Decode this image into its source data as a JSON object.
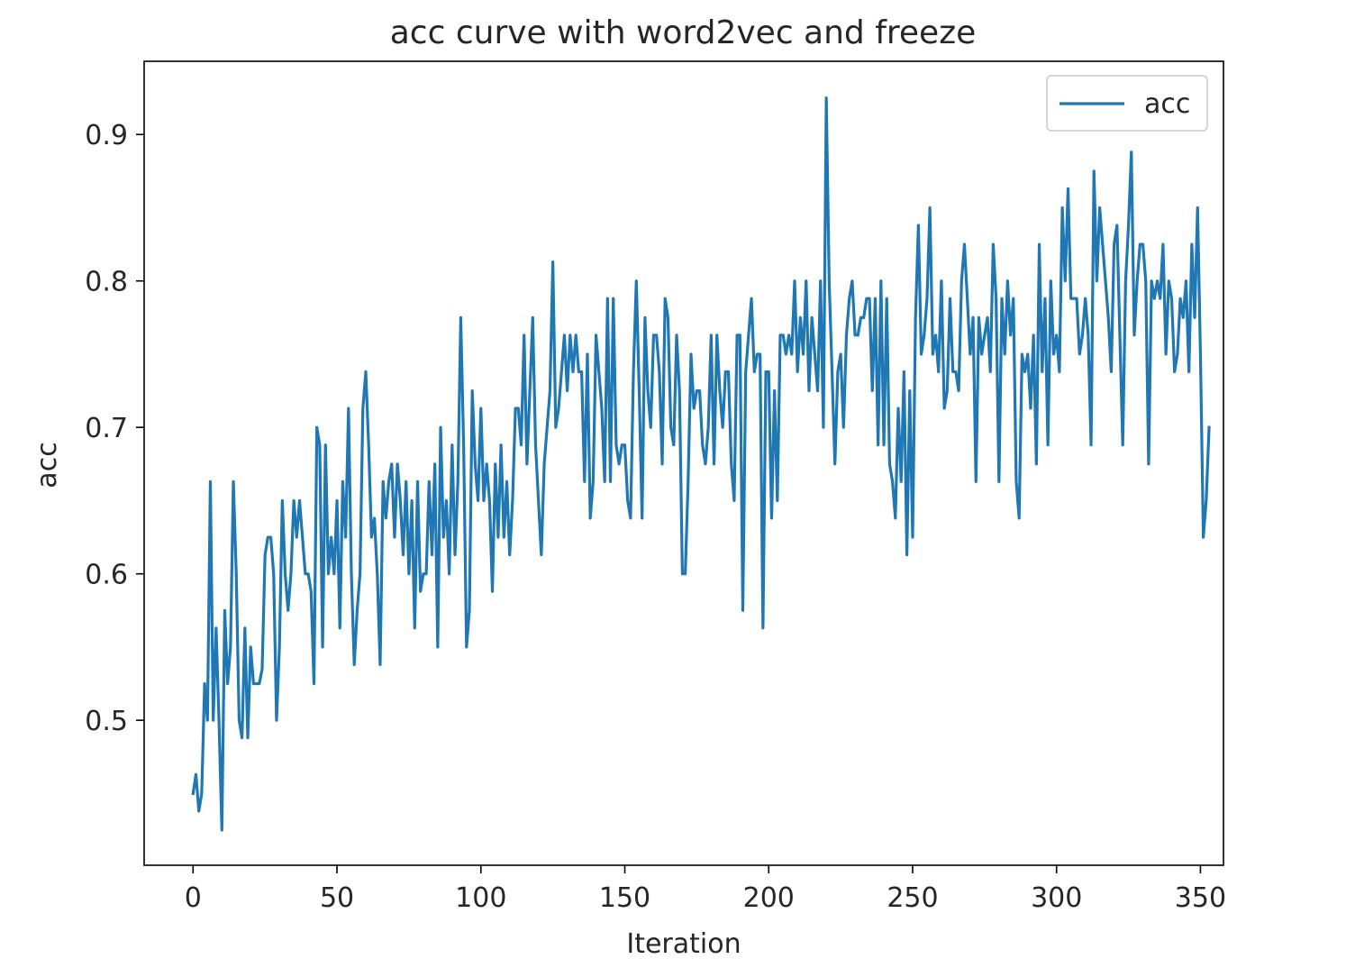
{
  "chart_data": {
    "type": "line",
    "title": "acc curve with word2vec and freeze",
    "xlabel": "Iteration",
    "ylabel": "acc",
    "xlim": [
      -17,
      358
    ],
    "ylim": [
      0.401,
      0.95
    ],
    "x_ticks": [
      0,
      50,
      100,
      150,
      200,
      250,
      300,
      350
    ],
    "y_ticks": [
      0.5,
      0.6,
      0.7,
      0.8,
      0.9
    ],
    "x_tick_labels": [
      "0",
      "50",
      "100",
      "150",
      "200",
      "250",
      "300",
      "350"
    ],
    "y_tick_labels": [
      "0.5",
      "0.6",
      "0.7",
      "0.8",
      "0.9"
    ],
    "grid": false,
    "legend": {
      "position": "top-right",
      "entries": [
        "acc"
      ]
    },
    "series": [
      {
        "name": "acc",
        "color": "#1f77b4",
        "x_start": 0,
        "x_step": 1,
        "values": [
          0.45,
          0.463,
          0.438,
          0.45,
          0.525,
          0.5,
          0.663,
          0.5,
          0.563,
          0.5,
          0.425,
          0.575,
          0.525,
          0.55,
          0.663,
          0.6,
          0.5,
          0.488,
          0.563,
          0.488,
          0.55,
          0.525,
          0.525,
          0.525,
          0.535,
          0.613,
          0.625,
          0.625,
          0.6,
          0.5,
          0.55,
          0.65,
          0.6,
          0.575,
          0.6,
          0.65,
          0.625,
          0.65,
          0.625,
          0.6,
          0.6,
          0.588,
          0.525,
          0.7,
          0.688,
          0.55,
          0.688,
          0.6,
          0.625,
          0.6,
          0.65,
          0.563,
          0.663,
          0.625,
          0.713,
          0.6,
          0.538,
          0.575,
          0.6,
          0.713,
          0.738,
          0.688,
          0.625,
          0.638,
          0.6,
          0.538,
          0.663,
          0.638,
          0.663,
          0.675,
          0.625,
          0.675,
          0.65,
          0.613,
          0.663,
          0.6,
          0.65,
          0.563,
          0.663,
          0.588,
          0.6,
          0.6,
          0.663,
          0.613,
          0.675,
          0.55,
          0.7,
          0.625,
          0.65,
          0.6,
          0.688,
          0.613,
          0.663,
          0.775,
          0.688,
          0.55,
          0.575,
          0.725,
          0.675,
          0.65,
          0.713,
          0.65,
          0.675,
          0.65,
          0.588,
          0.675,
          0.625,
          0.688,
          0.625,
          0.663,
          0.613,
          0.65,
          0.713,
          0.713,
          0.688,
          0.763,
          0.675,
          0.725,
          0.775,
          0.688,
          0.65,
          0.613,
          0.675,
          0.7,
          0.725,
          0.813,
          0.7,
          0.713,
          0.738,
          0.763,
          0.725,
          0.763,
          0.738,
          0.763,
          0.738,
          0.738,
          0.663,
          0.75,
          0.638,
          0.663,
          0.763,
          0.738,
          0.713,
          0.663,
          0.788,
          0.663,
          0.788,
          0.688,
          0.675,
          0.688,
          0.688,
          0.65,
          0.638,
          0.738,
          0.8,
          0.725,
          0.638,
          0.775,
          0.725,
          0.7,
          0.763,
          0.763,
          0.738,
          0.675,
          0.788,
          0.775,
          0.7,
          0.688,
          0.763,
          0.725,
          0.6,
          0.6,
          0.663,
          0.75,
          0.713,
          0.725,
          0.725,
          0.688,
          0.675,
          0.7,
          0.763,
          0.675,
          0.763,
          0.725,
          0.7,
          0.738,
          0.738,
          0.675,
          0.65,
          0.763,
          0.763,
          0.575,
          0.738,
          0.763,
          0.788,
          0.738,
          0.75,
          0.75,
          0.563,
          0.738,
          0.738,
          0.638,
          0.725,
          0.65,
          0.763,
          0.763,
          0.75,
          0.763,
          0.75,
          0.8,
          0.738,
          0.775,
          0.75,
          0.8,
          0.725,
          0.775,
          0.75,
          0.725,
          0.8,
          0.7,
          0.925,
          0.8,
          0.738,
          0.675,
          0.738,
          0.75,
          0.7,
          0.763,
          0.788,
          0.8,
          0.763,
          0.763,
          0.775,
          0.775,
          0.788,
          0.788,
          0.725,
          0.788,
          0.688,
          0.8,
          0.688,
          0.788,
          0.675,
          0.663,
          0.638,
          0.713,
          0.663,
          0.738,
          0.613,
          0.725,
          0.625,
          0.775,
          0.838,
          0.75,
          0.763,
          0.788,
          0.85,
          0.75,
          0.763,
          0.738,
          0.8,
          0.713,
          0.725,
          0.788,
          0.738,
          0.738,
          0.725,
          0.8,
          0.825,
          0.788,
          0.75,
          0.775,
          0.663,
          0.775,
          0.75,
          0.763,
          0.775,
          0.738,
          0.825,
          0.788,
          0.663,
          0.788,
          0.75,
          0.8,
          0.763,
          0.788,
          0.663,
          0.638,
          0.75,
          0.738,
          0.75,
          0.713,
          0.763,
          0.675,
          0.825,
          0.738,
          0.788,
          0.688,
          0.8,
          0.75,
          0.763,
          0.738,
          0.85,
          0.8,
          0.863,
          0.788,
          0.788,
          0.788,
          0.75,
          0.763,
          0.788,
          0.763,
          0.688,
          0.875,
          0.8,
          0.85,
          0.825,
          0.8,
          0.775,
          0.738,
          0.825,
          0.838,
          0.763,
          0.688,
          0.8,
          0.838,
          0.888,
          0.763,
          0.8,
          0.825,
          0.825,
          0.8,
          0.675,
          0.8,
          0.788,
          0.8,
          0.788,
          0.825,
          0.75,
          0.8,
          0.788,
          0.738,
          0.75,
          0.788,
          0.775,
          0.8,
          0.738,
          0.825,
          0.775,
          0.85,
          0.75,
          0.625,
          0.65,
          0.7
        ]
      }
    ]
  }
}
